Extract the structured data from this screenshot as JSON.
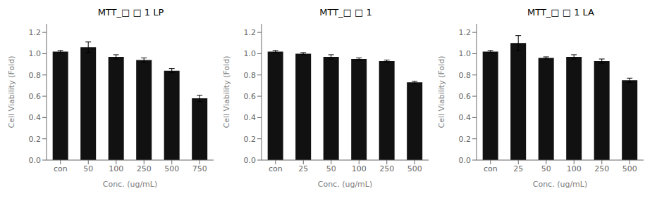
{
  "chart_data": [
    {
      "type": "bar",
      "title": "MTT_□ □ 1 LP",
      "categories": [
        "con",
        "50",
        "100",
        "250",
        "500",
        "750"
      ],
      "values": [
        1.02,
        1.06,
        0.97,
        0.94,
        0.84,
        0.58
      ],
      "errors": [
        0.01,
        0.05,
        0.02,
        0.02,
        0.02,
        0.03
      ],
      "xlabel": "Conc. (ug/mL)",
      "ylabel": "Cell Viability (Fold)",
      "color": "#111111",
      "ylim": [
        0.0,
        1.28
      ],
      "yticks": [
        {
          "value": 0.0,
          "label": "0.0"
        },
        0.2,
        0.4,
        0.6,
        0.8,
        {
          "value": 1.0,
          "label": "1.0"
        },
        1.2
      ],
      "grid": false
    },
    {
      "type": "bar",
      "title": "MTT_□ □ 1",
      "categories": [
        "con",
        "25",
        "50",
        "100",
        "250",
        "500"
      ],
      "values": [
        1.02,
        1.0,
        0.97,
        0.95,
        0.93,
        0.73
      ],
      "errors": [
        0.01,
        0.01,
        0.02,
        0.01,
        0.01,
        0.01
      ],
      "xlabel": "Conc. (ug/mL)",
      "ylabel": "Cell Viability (Fold)",
      "color": "#111111",
      "ylim": [
        0.0,
        1.28
      ],
      "yticks": [
        {
          "value": 0.0,
          "label": "0.0"
        },
        0.2,
        0.4,
        0.6,
        0.8,
        {
          "value": 1.0,
          "label": "1.0"
        },
        1.2
      ],
      "grid": false
    },
    {
      "type": "bar",
      "title": "MTT_□ □ 1 LA",
      "categories": [
        "con",
        "25",
        "50",
        "100",
        "250",
        "500"
      ],
      "values": [
        1.02,
        1.1,
        0.96,
        0.97,
        0.93,
        0.75
      ],
      "errors": [
        0.01,
        0.07,
        0.01,
        0.02,
        0.02,
        0.02
      ],
      "xlabel": "Conc. (ug/mL)",
      "ylabel": "Cell Viability (Fold)",
      "color": "#111111",
      "ylim": [
        0.0,
        1.28
      ],
      "yticks": [
        {
          "value": 0.0,
          "label": "0.0"
        },
        0.2,
        0.4,
        0.6,
        0.8,
        {
          "value": 1.0,
          "label": "1.0"
        },
        1.2
      ],
      "grid": false
    }
  ]
}
